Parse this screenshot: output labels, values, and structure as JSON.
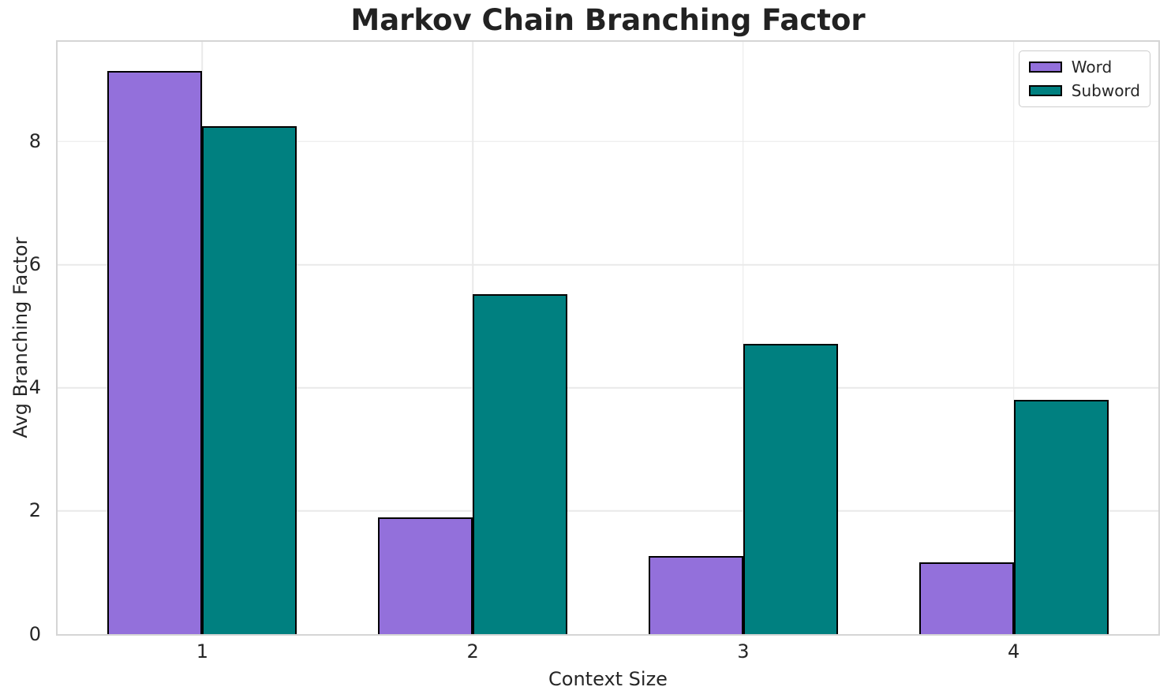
{
  "chart_data": {
    "type": "bar",
    "title": "Markov Chain Branching Factor",
    "xlabel": "Context Size",
    "ylabel": "Avg Branching Factor",
    "categories": [
      "1",
      "2",
      "3",
      "4"
    ],
    "x_positions": [
      0,
      1,
      2,
      3
    ],
    "series": [
      {
        "name": "Word",
        "color": "#9370DB",
        "values": [
          9.15,
          1.9,
          1.27,
          1.17
        ]
      },
      {
        "name": "Subword",
        "color": "#008080",
        "values": [
          8.25,
          5.52,
          4.72,
          3.81
        ]
      }
    ],
    "bar_width": 0.35,
    "bar_edge_color": "#000000",
    "xlim": [
      -0.535,
      3.535
    ],
    "ylim": [
      0,
      9.62
    ],
    "yticks": [
      0,
      2,
      4,
      6,
      8
    ],
    "grid": true,
    "legend_position": "upper right",
    "background_color": "#ffffff",
    "grid_color": "#e9e9e9",
    "spine_color": "#d5d5d5"
  }
}
